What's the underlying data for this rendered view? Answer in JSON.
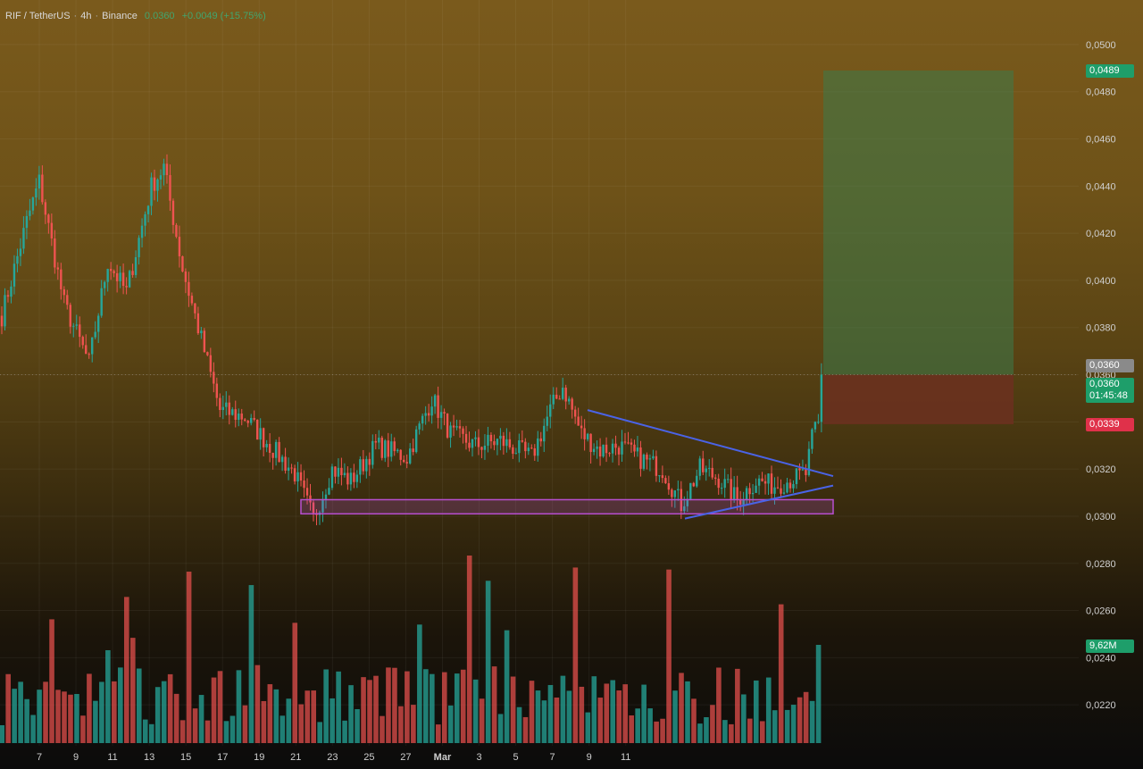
{
  "header": {
    "symbol": "RIF / TetherUS",
    "interval": "4h",
    "exchange": "Binance",
    "last_price": "0.0360",
    "change": "+0.0049 (+15.75%)"
  },
  "price_tags": {
    "target": "0,0489",
    "last_gray": "0,0360",
    "last_green": "0,0360",
    "countdown": "01:45:48",
    "stop": "0,0339",
    "volume": "9,62M"
  },
  "colors": {
    "up": "#26a69a",
    "down": "#ef5350",
    "trendline": "#4a63e6",
    "support_zone": "#b84fd0",
    "profit_zone": "#3c7a4a",
    "loss_zone": "#6e2f20",
    "target_tag": "#1e9e6a",
    "stop_tag": "#e0314a"
  },
  "chart_data": {
    "type": "candlestick",
    "title": "RIF / TetherUS · 4h · Binance",
    "y_axis": {
      "ticks": [
        "0,0500",
        "0,0480",
        "0,0460",
        "0,0440",
        "0,0420",
        "0,0400",
        "0,0380",
        "0,0360",
        "0,0340",
        "0,0320",
        "0,0300",
        "0,0280",
        "0,0260",
        "0,0240",
        "0,0220"
      ],
      "ylim": [
        0.0214,
        0.0503
      ]
    },
    "x_axis": {
      "ticks": [
        "7",
        "9",
        "11",
        "13",
        "15",
        "17",
        "19",
        "21",
        "23",
        "25",
        "27",
        "Mar",
        "3",
        "5",
        "7",
        "9",
        "11"
      ]
    },
    "price_series": {
      "start_close": 0.0385,
      "waypoints": [
        {
          "i": 0,
          "close": 0.0385
        },
        {
          "i": 8,
          "close": 0.0425
        },
        {
          "i": 12,
          "close": 0.0442
        },
        {
          "i": 20,
          "close": 0.039
        },
        {
          "i": 28,
          "close": 0.0365
        },
        {
          "i": 34,
          "close": 0.0408
        },
        {
          "i": 40,
          "close": 0.0395
        },
        {
          "i": 48,
          "close": 0.044
        },
        {
          "i": 52,
          "close": 0.0448
        },
        {
          "i": 58,
          "close": 0.0405
        },
        {
          "i": 64,
          "close": 0.0375
        },
        {
          "i": 70,
          "close": 0.0345
        },
        {
          "i": 78,
          "close": 0.0342
        },
        {
          "i": 86,
          "close": 0.033
        },
        {
          "i": 94,
          "close": 0.0318
        },
        {
          "i": 100,
          "close": 0.0299
        },
        {
          "i": 106,
          "close": 0.032
        },
        {
          "i": 112,
          "close": 0.0315
        },
        {
          "i": 120,
          "close": 0.033
        },
        {
          "i": 130,
          "close": 0.0325
        },
        {
          "i": 138,
          "close": 0.035
        },
        {
          "i": 144,
          "close": 0.0335
        },
        {
          "i": 152,
          "close": 0.033
        },
        {
          "i": 160,
          "close": 0.0332
        },
        {
          "i": 170,
          "close": 0.0325
        },
        {
          "i": 176,
          "close": 0.0345
        },
        {
          "i": 180,
          "close": 0.0355
        },
        {
          "i": 186,
          "close": 0.0335
        },
        {
          "i": 192,
          "close": 0.0328
        },
        {
          "i": 198,
          "close": 0.033
        },
        {
          "i": 204,
          "close": 0.0325
        },
        {
          "i": 212,
          "close": 0.032
        },
        {
          "i": 218,
          "close": 0.0305
        },
        {
          "i": 224,
          "close": 0.032
        },
        {
          "i": 230,
          "close": 0.0316
        },
        {
          "i": 236,
          "close": 0.0307
        },
        {
          "i": 242,
          "close": 0.0315
        },
        {
          "i": 248,
          "close": 0.0313
        },
        {
          "i": 254,
          "close": 0.0316
        },
        {
          "i": 258,
          "close": 0.0318
        },
        {
          "i": 261,
          "close": 0.034
        },
        {
          "i": 263,
          "close": 0.036
        }
      ],
      "count": 264,
      "first_tick_label_index": 12,
      "bars_per_tick": 12
    },
    "volume": {
      "last": "9,62M",
      "relative_max": 1.0
    },
    "drawings": {
      "descending_trendline": [
        {
          "x": "24",
          "y": 0.0345
        },
        {
          "x": "4 Mar",
          "y": 0.0317
        }
      ],
      "ascending_trendline": [
        {
          "x": "28",
          "y": 0.0299
        },
        {
          "x": "4 Mar",
          "y": 0.0313
        }
      ],
      "support_zone": {
        "from": "15",
        "to": "4 Mar",
        "y_low": 0.0301,
        "y_high": 0.0307
      },
      "long_position": {
        "entry": 0.036,
        "target": 0.0489,
        "stop": 0.0339
      }
    }
  }
}
